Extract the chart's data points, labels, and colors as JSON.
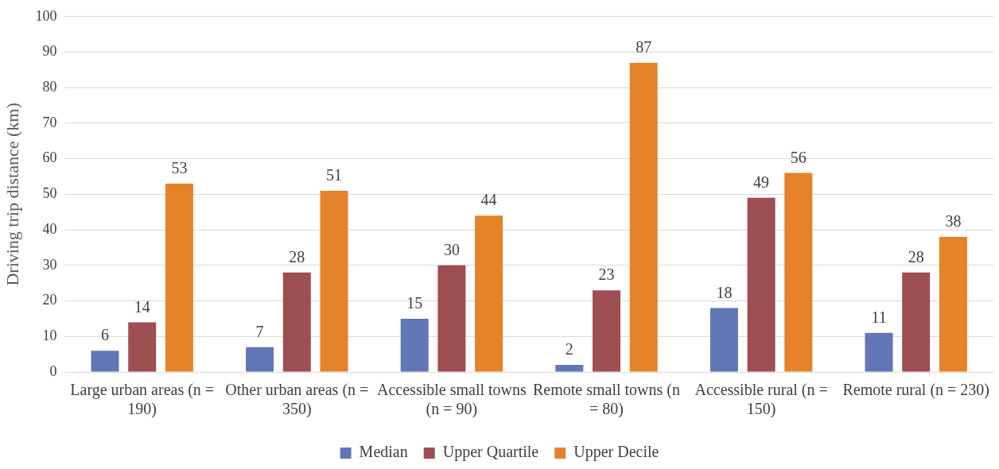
{
  "chart_data": {
    "type": "bar",
    "ylabel": "Driving trip distance (km)",
    "categories": [
      "Large urban areas (n = 190)",
      "Other urban areas (n = 350)",
      "Accessible small towns (n = 90)",
      "Remote small towns (n = 80)",
      "Accessible rural (n = 150)",
      "Remote rural (n = 230)"
    ],
    "series": [
      {
        "name": "Median",
        "color": "#6177b6",
        "values": [
          6,
          7,
          15,
          2,
          18,
          11
        ]
      },
      {
        "name": "Upper Quartile",
        "color": "#9e4f52",
        "values": [
          14,
          28,
          30,
          23,
          49,
          28
        ]
      },
      {
        "name": "Upper Decile",
        "color": "#e5832a",
        "values": [
          53,
          51,
          44,
          87,
          56,
          38
        ]
      }
    ],
    "ylim": [
      0,
      100
    ],
    "yticks": [
      0,
      10,
      20,
      30,
      40,
      50,
      60,
      70,
      80,
      90,
      100
    ],
    "grid": "y",
    "legend": "bottom",
    "data_labels": true
  }
}
